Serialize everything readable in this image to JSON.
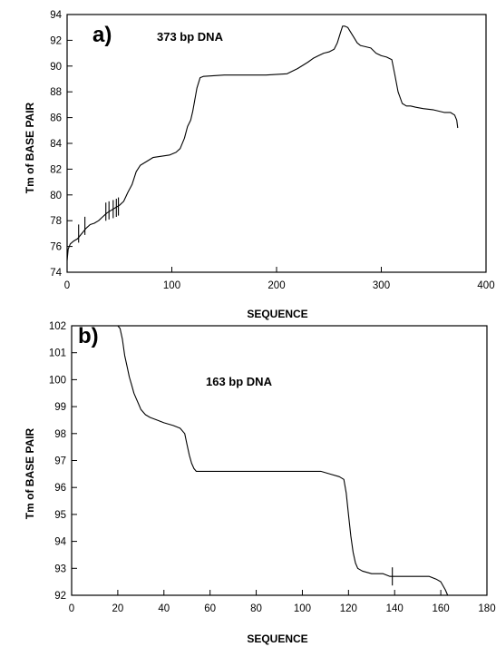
{
  "chart_data": [
    {
      "type": "line",
      "panel_label": "a)",
      "annotation": "373 bp DNA",
      "xlabel": "SEQUENCE",
      "ylabel": "Tm of BASE PAIR",
      "xlim": [
        0,
        400
      ],
      "ylim": [
        74,
        94
      ],
      "xticks": [
        0,
        100,
        200,
        300,
        400
      ],
      "yticks": [
        74,
        76,
        78,
        80,
        82,
        84,
        86,
        88,
        90,
        92,
        94
      ],
      "grid": false,
      "series": [
        {
          "x": [
            0,
            1,
            3,
            6,
            10,
            14,
            18,
            22,
            26,
            30,
            34,
            38,
            42,
            46,
            50,
            54,
            58,
            62,
            66,
            70,
            76,
            82,
            90,
            98,
            104,
            108,
            112,
            115,
            118,
            120,
            122,
            124,
            127,
            130,
            150,
            190,
            210,
            220,
            230,
            235,
            240,
            245,
            250,
            255,
            258,
            261,
            263,
            265,
            268,
            271,
            274,
            277,
            280,
            285,
            290,
            295,
            300,
            305,
            310,
            313,
            316,
            320,
            324,
            328,
            333,
            340,
            350,
            360,
            366,
            370,
            372,
            373
          ],
          "y": [
            74.9,
            75.8,
            76.2,
            76.4,
            76.6,
            77.0,
            77.4,
            77.7,
            77.8,
            78.0,
            78.3,
            78.6,
            78.8,
            79.0,
            79.2,
            79.5,
            80.2,
            80.8,
            81.8,
            82.3,
            82.6,
            82.9,
            83.0,
            83.1,
            83.3,
            83.6,
            84.4,
            85.3,
            85.8,
            86.5,
            87.4,
            88.3,
            89.1,
            89.2,
            89.3,
            89.3,
            89.4,
            89.8,
            90.3,
            90.6,
            90.8,
            91.0,
            91.1,
            91.3,
            91.8,
            92.6,
            93.1,
            93.1,
            93.0,
            92.6,
            92.2,
            91.8,
            91.6,
            91.5,
            91.4,
            91.0,
            90.8,
            90.7,
            90.5,
            89.3,
            88.0,
            87.1,
            86.9,
            86.9,
            86.8,
            86.7,
            86.6,
            86.4,
            86.4,
            86.2,
            85.8,
            85.2
          ]
        }
      ],
      "markers": [
        {
          "x": 11,
          "y": 77.0
        },
        {
          "x": 17,
          "y": 77.6
        },
        {
          "x": 37,
          "y": 78.7
        },
        {
          "x": 40,
          "y": 78.8
        },
        {
          "x": 44,
          "y": 78.9
        },
        {
          "x": 47,
          "y": 79.0
        },
        {
          "x": 49,
          "y": 79.1
        }
      ]
    },
    {
      "type": "line",
      "panel_label": "b)",
      "annotation": "163 bp DNA",
      "xlabel": "SEQUENCE",
      "ylabel": "Tm of BASE PAIR",
      "xlim": [
        0,
        180
      ],
      "ylim": [
        92,
        102
      ],
      "xticks": [
        0,
        20,
        40,
        60,
        80,
        100,
        120,
        140,
        160,
        180
      ],
      "yticks": [
        92,
        93,
        94,
        95,
        96,
        97,
        98,
        99,
        100,
        101,
        102
      ],
      "grid": false,
      "series": [
        {
          "x": [
            0,
            20,
            21,
            22,
            23,
            24,
            25,
            26,
            27,
            28,
            29,
            30,
            32,
            34,
            37,
            40,
            44,
            47,
            49,
            50,
            51,
            52,
            53,
            54,
            56,
            60,
            80,
            100,
            108,
            112,
            116,
            118,
            119,
            120,
            121,
            122,
            123,
            124,
            126,
            130,
            135,
            138,
            140,
            145,
            150,
            155,
            158,
            160,
            162,
            163
          ],
          "y": [
            102,
            102,
            101.9,
            101.5,
            100.9,
            100.5,
            100.1,
            99.8,
            99.5,
            99.3,
            99.1,
            98.9,
            98.7,
            98.6,
            98.5,
            98.4,
            98.3,
            98.2,
            98.0,
            97.6,
            97.2,
            96.9,
            96.7,
            96.6,
            96.6,
            96.6,
            96.6,
            96.6,
            96.6,
            96.5,
            96.4,
            96.3,
            95.8,
            95.0,
            94.2,
            93.6,
            93.2,
            93.0,
            92.9,
            92.8,
            92.8,
            92.7,
            92.7,
            92.7,
            92.7,
            92.7,
            92.6,
            92.5,
            92.2,
            92.0
          ]
        }
      ],
      "markers": [
        {
          "x": 139,
          "y": 92.7
        }
      ]
    }
  ]
}
